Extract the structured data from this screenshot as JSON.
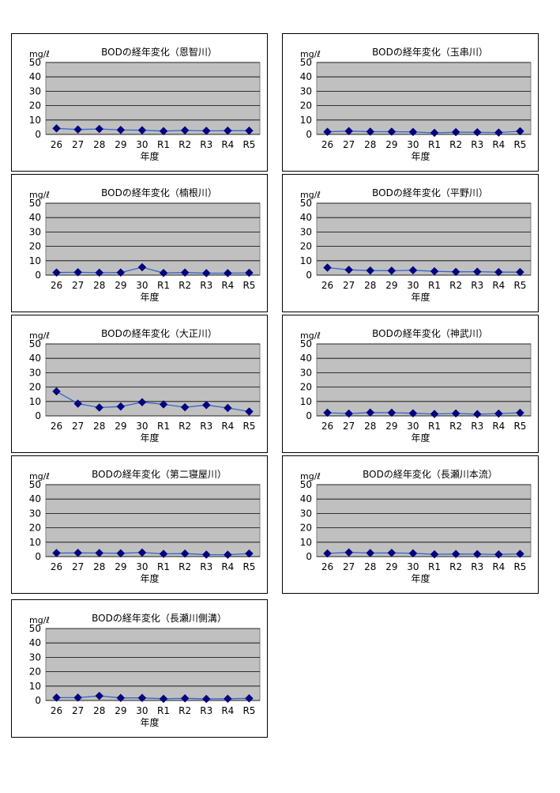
{
  "colors": {
    "plot_bg": "#c0c0c0",
    "line": "#3366cc",
    "marker": "#000080",
    "grid": "#000000"
  },
  "chart_data": [
    {
      "type": "line",
      "title": "BODの経年変化（恩智川）",
      "ylabel": "mg/ℓ",
      "xlabel": "年度",
      "categories": [
        "26",
        "27",
        "28",
        "29",
        "30",
        "R1",
        "R2",
        "R3",
        "R4",
        "R5"
      ],
      "yticks": [
        "0",
        "10",
        "20",
        "30",
        "40",
        "50"
      ],
      "ylim": [
        0,
        50
      ],
      "grid": true,
      "values": [
        4.2,
        3.4,
        3.8,
        3.1,
        2.9,
        2.3,
        2.8,
        2.5,
        2.6,
        2.6
      ]
    },
    {
      "type": "line",
      "title": "BODの経年変化（玉串川）",
      "ylabel": "mg/ℓ",
      "xlabel": "年度",
      "categories": [
        "26",
        "27",
        "28",
        "29",
        "30",
        "R1",
        "R2",
        "R3",
        "R4",
        "R5"
      ],
      "yticks": [
        "0",
        "10",
        "20",
        "30",
        "40",
        "50"
      ],
      "ylim": [
        0,
        50
      ],
      "grid": true,
      "values": [
        1.8,
        2.3,
        1.9,
        1.9,
        1.7,
        1.1,
        1.6,
        1.5,
        1.3,
        2.2
      ]
    },
    {
      "type": "line",
      "title": "BODの経年変化（楠根川）",
      "ylabel": "mg/ℓ",
      "xlabel": "年度",
      "categories": [
        "26",
        "27",
        "28",
        "29",
        "30",
        "R1",
        "R2",
        "R3",
        "R4",
        "R5"
      ],
      "yticks": [
        "0",
        "10",
        "20",
        "30",
        "40",
        "50"
      ],
      "ylim": [
        0,
        50
      ],
      "grid": true,
      "values": [
        1.8,
        2.0,
        1.7,
        1.8,
        5.5,
        1.5,
        1.8,
        1.4,
        1.4,
        1.6
      ]
    },
    {
      "type": "line",
      "title": "BODの経年変化（平野川）",
      "ylabel": "mg/ℓ",
      "xlabel": "年度",
      "categories": [
        "26",
        "27",
        "28",
        "29",
        "30",
        "R1",
        "R2",
        "R3",
        "R4",
        "R5"
      ],
      "yticks": [
        "0",
        "10",
        "20",
        "30",
        "40",
        "50"
      ],
      "ylim": [
        0,
        50
      ],
      "grid": true,
      "values": [
        5.2,
        3.7,
        3.2,
        3.1,
        3.4,
        2.7,
        2.3,
        2.4,
        2.1,
        2.1
      ]
    },
    {
      "type": "line",
      "title": "BODの経年変化（大正川）",
      "ylabel": "mg/ℓ",
      "xlabel": "年度",
      "categories": [
        "26",
        "27",
        "28",
        "29",
        "30",
        "R1",
        "R2",
        "R3",
        "R4",
        "R5"
      ],
      "yticks": [
        "0",
        "10",
        "20",
        "30",
        "40",
        "50"
      ],
      "ylim": [
        0,
        50
      ],
      "grid": true,
      "values": [
        17,
        8.5,
        5.8,
        6.5,
        9.5,
        8.0,
        6.0,
        7.5,
        5.5,
        3.0
      ]
    },
    {
      "type": "line",
      "title": "BODの経年変化（神武川）",
      "ylabel": "mg/ℓ",
      "xlabel": "年度",
      "categories": [
        "26",
        "27",
        "28",
        "29",
        "30",
        "R1",
        "R2",
        "R3",
        "R4",
        "R5"
      ],
      "yticks": [
        "0",
        "10",
        "20",
        "30",
        "40",
        "50"
      ],
      "ylim": [
        0,
        50
      ],
      "grid": true,
      "values": [
        2.2,
        1.6,
        2.3,
        2.2,
        1.8,
        1.3,
        1.7,
        1.2,
        1.6,
        2.1
      ]
    },
    {
      "type": "line",
      "title": "BODの経年変化（第二寝屋川）",
      "ylabel": "mg/ℓ",
      "xlabel": "年度",
      "categories": [
        "26",
        "27",
        "28",
        "29",
        "30",
        "R1",
        "R2",
        "R3",
        "R4",
        "R5"
      ],
      "yticks": [
        "0",
        "10",
        "20",
        "30",
        "40",
        "50"
      ],
      "ylim": [
        0,
        50
      ],
      "grid": true,
      "values": [
        2.5,
        2.6,
        2.5,
        2.3,
        2.8,
        1.9,
        2.1,
        1.4,
        1.3,
        2.1
      ]
    },
    {
      "type": "line",
      "title": "BODの経年変化（長瀬川本流）",
      "ylabel": "mg/ℓ",
      "xlabel": "年度",
      "categories": [
        "26",
        "27",
        "28",
        "29",
        "30",
        "R1",
        "R2",
        "R3",
        "R4",
        "R5"
      ],
      "yticks": [
        "0",
        "10",
        "20",
        "30",
        "40",
        "50"
      ],
      "ylim": [
        0,
        50
      ],
      "grid": true,
      "values": [
        2.2,
        2.9,
        2.5,
        2.6,
        2.3,
        1.6,
        1.8,
        1.7,
        1.5,
        1.9
      ]
    },
    {
      "type": "line",
      "title": "BODの経年変化（長瀬川側溝）",
      "ylabel": "mg/ℓ",
      "xlabel": "年度",
      "categories": [
        "26",
        "27",
        "28",
        "29",
        "30",
        "R1",
        "R2",
        "R3",
        "R4",
        "R5"
      ],
      "yticks": [
        "0",
        "10",
        "20",
        "30",
        "40",
        "50"
      ],
      "ylim": [
        0,
        50
      ],
      "grid": true,
      "values": [
        2.0,
        2.0,
        3.2,
        1.8,
        1.8,
        1.2,
        1.5,
        1.1,
        1.2,
        1.5
      ]
    }
  ]
}
